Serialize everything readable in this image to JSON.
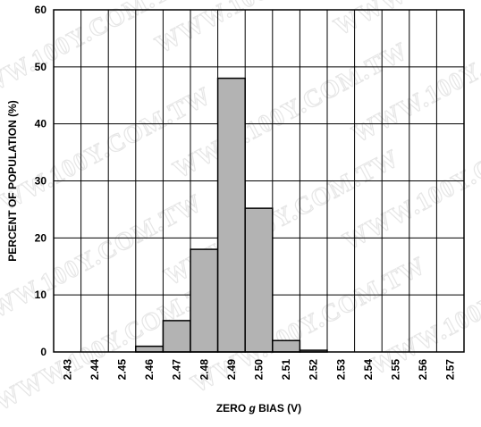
{
  "watermark": "WWW.100Y.COM.TW",
  "chart_data": {
    "type": "bar",
    "title": "",
    "xlabel": "ZERO g BIAS (V)",
    "xlabel_parts": {
      "before": "ZERO ",
      "italic": "g",
      "after": " BIAS (V)"
    },
    "ylabel": "PERCENT OF POPULATION (%)",
    "categories": [
      "2.43",
      "2.44",
      "2.45",
      "2.46",
      "2.47",
      "2.48",
      "2.49",
      "2.50",
      "2.51",
      "2.52",
      "2.53",
      "2.54",
      "2.55",
      "2.56",
      "2.57"
    ],
    "values": [
      0,
      0,
      0,
      1,
      5.5,
      18,
      48,
      25.2,
      2,
      0.3,
      0,
      0,
      0,
      0,
      0
    ],
    "ylim": [
      0,
      60
    ],
    "yticks": [
      "0",
      "10",
      "20",
      "30",
      "40",
      "50",
      "60"
    ],
    "grid": true,
    "bar_color": "#b3b3b3",
    "bar_edge_color": "#000000"
  }
}
